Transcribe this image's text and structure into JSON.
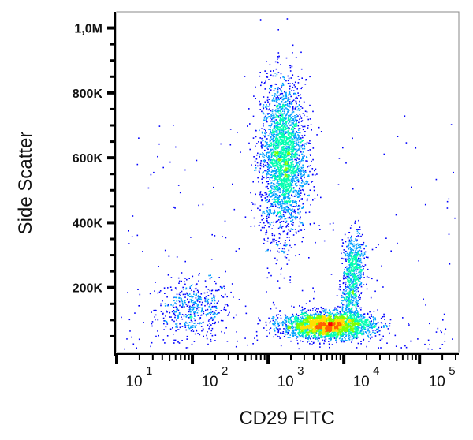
{
  "chart_data": {
    "type": "scatter",
    "subtype": "flow cytometry density dot plot",
    "xlabel": "CD29 FITC",
    "ylabel": "Side Scatter",
    "x_scale": "log",
    "xlim": [
      10,
      330000
    ],
    "ylim": [
      0,
      1050000
    ],
    "x_ticks": [
      {
        "base": "10",
        "exp": "1",
        "value": 10
      },
      {
        "base": "10",
        "exp": "2",
        "value": 100
      },
      {
        "base": "10",
        "exp": "3",
        "value": 1000
      },
      {
        "base": "10",
        "exp": "4",
        "value": 10000
      },
      {
        "base": "10",
        "exp": "5",
        "value": 100000
      }
    ],
    "y_ticks": [
      {
        "label": "200K",
        "value": 200000
      },
      {
        "label": "400K",
        "value": 400000
      },
      {
        "label": "600K",
        "value": 600000
      },
      {
        "label": "800K",
        "value": 800000
      },
      {
        "label": "1,0M",
        "value": 1000000
      }
    ],
    "grid": false,
    "colormap": [
      "#0000ff",
      "#00a0ff",
      "#00ffb0",
      "#80ff00",
      "#ffe000",
      "#ff6000",
      "#ff0000"
    ],
    "populations": [
      {
        "x_center": 102,
        "y_center": 135000,
        "x_spread_decades": 0.25,
        "y_spread": 45000,
        "relative_count": 0.07
      },
      {
        "x_center": 1550,
        "y_center": 600000,
        "x_spread_decades": 0.15,
        "y_spread": 120000,
        "relative_count": 0.38
      },
      {
        "x_center": 13500,
        "y_center": 270000,
        "x_spread_decades": 0.07,
        "y_spread": 50000,
        "relative_count": 0.07
      },
      {
        "x_center": 6000,
        "y_center": 85000,
        "x_spread_decades": 0.3,
        "y_spread": 20000,
        "relative_count": 0.38
      },
      {
        "x_center": 12000,
        "y_center": 170000,
        "x_spread_decades": 0.06,
        "y_spread": 40000,
        "relative_count": 0.04
      }
    ]
  }
}
